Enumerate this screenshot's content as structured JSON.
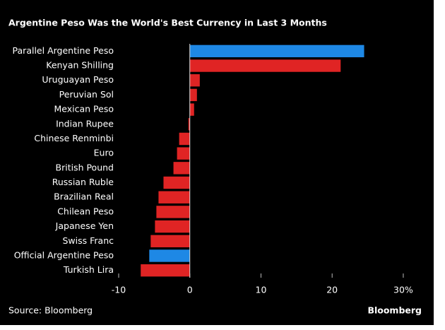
{
  "chart_data": {
    "type": "hbar",
    "title": "Argentine Peso Was the World's Best Currency in Last 3 Months",
    "source": "Source: Bloomberg",
    "brand": "Bloomberg",
    "categories": [
      "Parallel Argentine Peso",
      "Kenyan Shilling",
      "Uruguayan Peso",
      "Peruvian Sol",
      "Mexican Peso",
      "Indian Rupee",
      "Chinese Renminbi",
      "Euro",
      "British Pound",
      "Russian Ruble",
      "Brazilian Real",
      "Chilean Peso",
      "Japanese Yen",
      "Swiss Franc",
      "Official Argentine Peso",
      "Turkish Lira"
    ],
    "values": [
      24.5,
      21.2,
      1.4,
      1.0,
      0.6,
      -0.2,
      -1.5,
      -1.8,
      -2.3,
      -3.7,
      -4.4,
      -4.7,
      -4.9,
      -5.5,
      -5.7,
      -6.9
    ],
    "colors": [
      "#1e88e5",
      "#e02424",
      "#e02424",
      "#e02424",
      "#e02424",
      "#e02424",
      "#e02424",
      "#e02424",
      "#e02424",
      "#e02424",
      "#e02424",
      "#e02424",
      "#e02424",
      "#e02424",
      "#1e88e5",
      "#e02424"
    ],
    "xlim": [
      -10,
      31
    ],
    "xticks": [
      -10,
      0,
      10,
      20,
      {
        "value": 30,
        "label": "30%"
      }
    ]
  }
}
